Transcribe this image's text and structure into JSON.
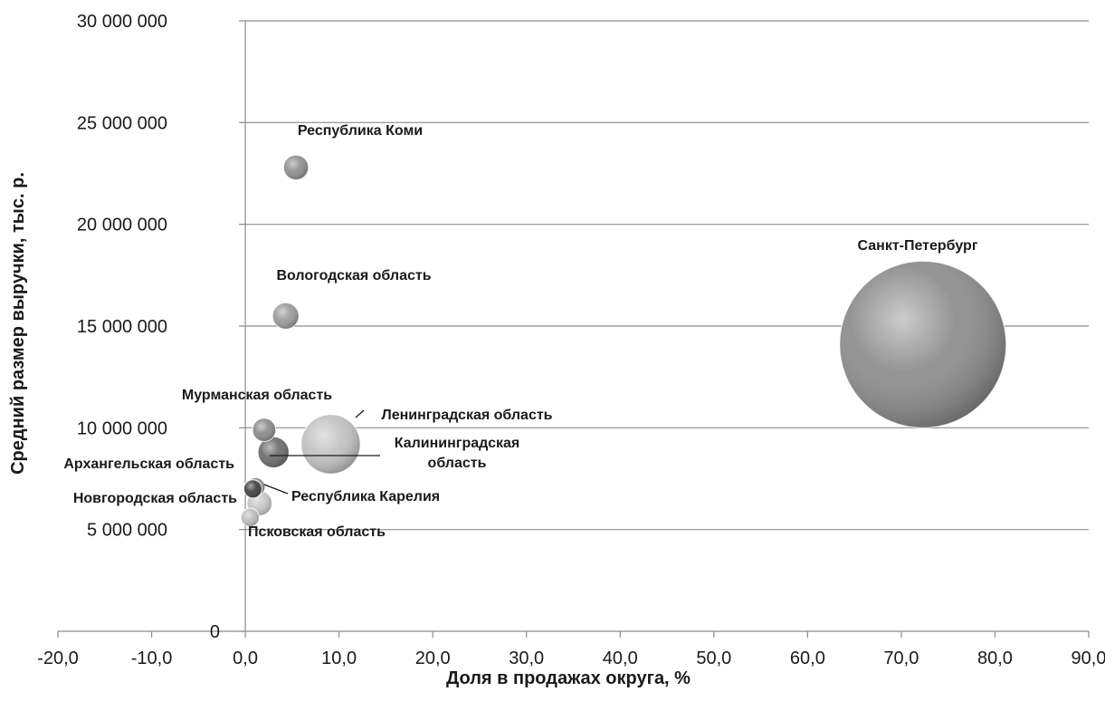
{
  "chart_data": {
    "type": "bubble",
    "xlabel": "Доля в продажах округа, %",
    "ylabel": "Средний размер выручки, тыс. р.",
    "xlim": [
      -20,
      90
    ],
    "ylim": [
      0,
      30000000
    ],
    "x_ticks": [
      -20,
      -10,
      0,
      10,
      20,
      30,
      40,
      50,
      60,
      70,
      80,
      90
    ],
    "y_ticks": [
      0,
      5000000,
      10000000,
      15000000,
      20000000,
      25000000,
      30000000
    ],
    "x_tick_labels": [
      "-20,0",
      "-10,0",
      "0,0",
      "10,0",
      "20,0",
      "30,0",
      "40,0",
      "50,0",
      "60,0",
      "70,0",
      "80,0",
      "90,0"
    ],
    "y_tick_labels": [
      "0",
      "5 000 000",
      "10 000 000",
      "15 000 000",
      "20 000 000",
      "25 000 000",
      "30 000 000"
    ],
    "grid": "horizontal",
    "points": [
      {
        "name": "Санкт-Петербург",
        "x": 72.3,
        "y": 14100000,
        "size": 72.3,
        "color": "#8c8c8c"
      },
      {
        "name": "Ленинградская область",
        "x": 9.1,
        "y": 9200000,
        "size": 9.1,
        "color": "#c2c2c2"
      },
      {
        "name": "Республика Коми",
        "x": 5.4,
        "y": 22800000,
        "size": 1.6,
        "color": "#8e8e8e"
      },
      {
        "name": "Вологодская область",
        "x": 4.3,
        "y": 15500000,
        "size": 1.8,
        "color": "#9a9a9a"
      },
      {
        "name": "Калининградская область",
        "x": 3.0,
        "y": 8800000,
        "size": 2.5,
        "color": "#6a6a6a"
      },
      {
        "name": "Мурманская область",
        "x": 2.0,
        "y": 9900000,
        "size": 1.4,
        "color": "#8a8a8a"
      },
      {
        "name": "Новгородская область",
        "x": 1.5,
        "y": 6300000,
        "size": 1.6,
        "color": "#c8c8c8"
      },
      {
        "name": "Республика Карелия",
        "x": 1.1,
        "y": 7100000,
        "size": 0.9,
        "color": "#8f8f8f"
      },
      {
        "name": "Архангельская область",
        "x": 0.8,
        "y": 7000000,
        "size": 0.8,
        "color": "#3e3e3e"
      },
      {
        "name": "Псковская область",
        "x": 0.5,
        "y": 5600000,
        "size": 0.5,
        "color": "#bdbdbd"
      }
    ]
  }
}
